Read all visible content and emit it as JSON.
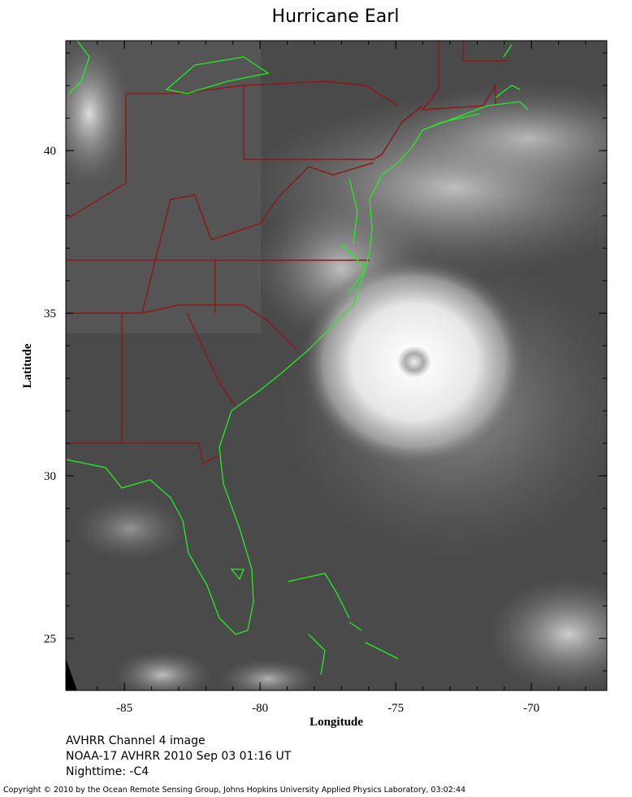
{
  "title": "Hurricane Earl",
  "map": {
    "xlabel": "Longitude",
    "ylabel": "Latitude",
    "xlim": [
      -87.16,
      -67.22
    ],
    "ylim": [
      23.4,
      43.38
    ],
    "xticks": [
      -85,
      -80,
      -75,
      -70
    ],
    "yticks": [
      25,
      30,
      35,
      40
    ],
    "minor_tick_step": 1
  },
  "caption": [
    "AVHRR Channel 4 image",
    "NOAA-17 AVHRR 2010 Sep 03 01:16 UT",
    "Nighttime: -C4"
  ],
  "copyright": "Copyright © 2010 by the Ocean Remote Sensing Group, Johns Hopkins University Applied Physics Laboratory, 03:02:44"
}
